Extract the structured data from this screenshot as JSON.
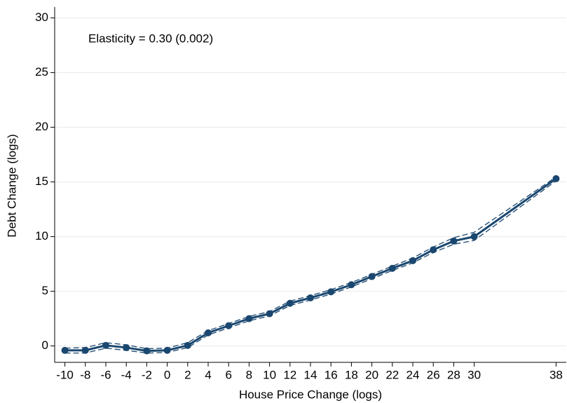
{
  "chart_data": {
    "type": "line",
    "annotation": "Elasticity = 0.30 (0.002)",
    "x_label": "House Price Change (logs)",
    "y_label": "Debt Change (logs)",
    "x": [
      -10,
      -8,
      -6,
      -4,
      -2,
      0,
      2,
      4,
      6,
      8,
      10,
      12,
      14,
      16,
      18,
      20,
      22,
      24,
      26,
      28,
      30,
      38
    ],
    "series": [
      {
        "color": "#1a476f",
        "dashed": false,
        "markers": true,
        "values": [
          -0.4,
          -0.4,
          0.05,
          -0.15,
          -0.45,
          -0.4,
          0.05,
          1.2,
          1.85,
          2.5,
          2.95,
          3.9,
          4.4,
          4.95,
          5.6,
          6.35,
          7.1,
          7.8,
          8.8,
          9.6,
          10.0,
          15.3
        ]
      },
      {
        "color": "#1a476f",
        "dashed": true,
        "markers": false,
        "values": [
          -0.2,
          -0.15,
          0.3,
          0.1,
          -0.25,
          -0.2,
          0.3,
          1.4,
          2.05,
          2.7,
          3.15,
          4.1,
          4.6,
          5.15,
          5.8,
          6.55,
          7.3,
          8.05,
          9.05,
          9.9,
          10.4,
          15.45
        ]
      },
      {
        "color": "#1a476f",
        "dashed": true,
        "markers": false,
        "values": [
          -0.65,
          -0.65,
          -0.2,
          -0.4,
          -0.65,
          -0.6,
          -0.15,
          1.0,
          1.65,
          2.3,
          2.75,
          3.7,
          4.2,
          4.75,
          5.4,
          6.15,
          6.9,
          7.6,
          8.55,
          9.3,
          9.65,
          15.1
        ]
      }
    ],
    "xlim": [
      -11,
      39
    ],
    "ylim": [
      -1.5,
      31
    ],
    "xticks": [
      -10,
      -8,
      -6,
      -4,
      -2,
      0,
      2,
      4,
      6,
      8,
      10,
      12,
      14,
      16,
      18,
      20,
      22,
      24,
      26,
      28,
      30,
      38
    ],
    "yticks": [
      0,
      5,
      10,
      15,
      20,
      25,
      30
    ],
    "grid": true
  }
}
